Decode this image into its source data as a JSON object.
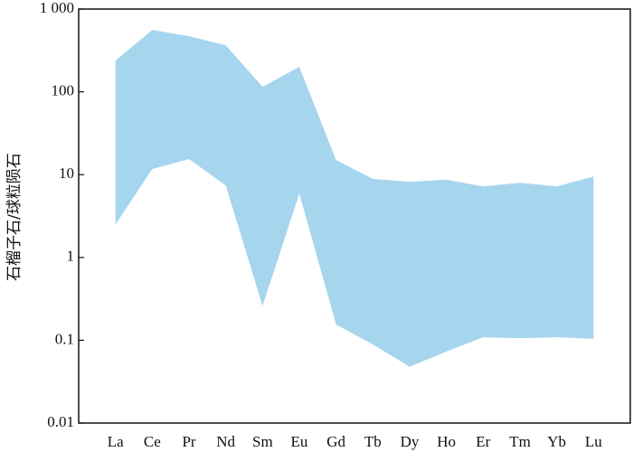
{
  "chart_data": {
    "type": "range-area",
    "y_label": "石榴子石/球粒陨石",
    "categories": [
      "La",
      "Ce",
      "Pr",
      "Nd",
      "Sm",
      "Eu",
      "Gd",
      "Tb",
      "Dy",
      "Ho",
      "Er",
      "Tm",
      "Yb",
      "Lu"
    ],
    "upper": [
      239,
      560,
      470,
      365,
      115,
      200,
      15,
      8.9,
      8.2,
      8.7,
      7.2,
      8.0,
      7.2,
      9.5
    ],
    "lower": [
      2.5,
      11.7,
      15.4,
      7.4,
      0.26,
      5.9,
      0.155,
      0.089,
      0.048,
      0.073,
      0.109,
      0.106,
      0.109,
      0.104
    ],
    "color": "#a6d5ee",
    "log_y": true,
    "ylim": [
      0.01,
      1000
    ],
    "yticks": [
      0.01,
      0.1,
      1,
      10,
      100,
      {
        "value": 1000,
        "label": "1 000"
      }
    ]
  }
}
